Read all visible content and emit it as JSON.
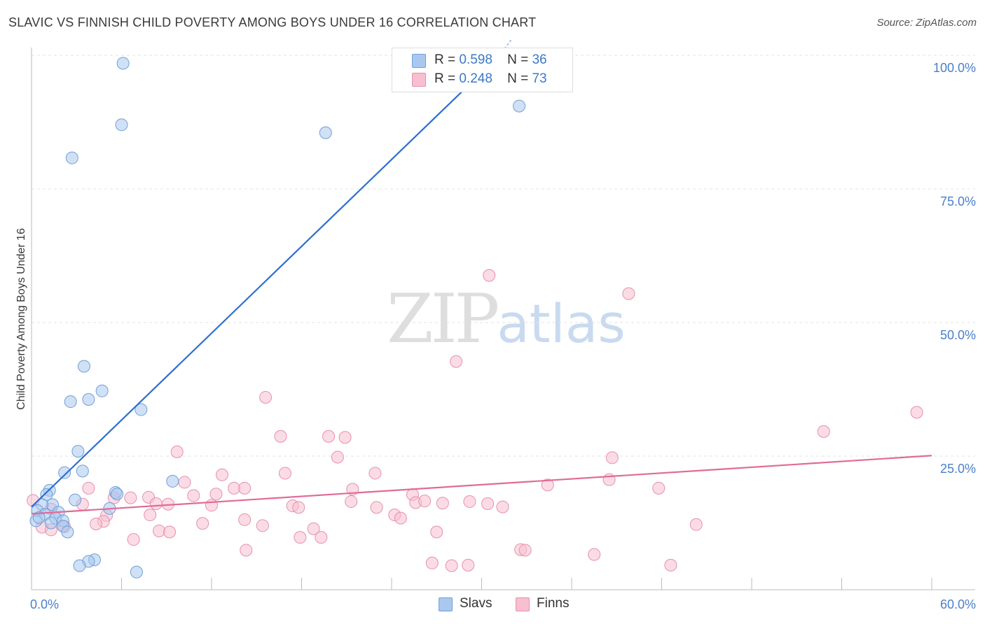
{
  "title": "SLAVIC VS FINNISH CHILD POVERTY AMONG BOYS UNDER 16 CORRELATION CHART",
  "source": "Source: ZipAtlas.com",
  "watermark": {
    "zip": "ZIP",
    "atlas": "atlas"
  },
  "legend": {
    "rows": [
      {
        "r_label": "R =",
        "r_value": "0.598",
        "n_label": "N =",
        "n_value": "36"
      },
      {
        "r_label": "R =",
        "r_value": "0.248",
        "n_label": "N =",
        "n_value": "73"
      }
    ]
  },
  "bottom_legend": [
    "Slavs",
    "Finns"
  ],
  "colors": {
    "slavs_fill": "#aac8ef",
    "slavs_stroke": "#6f9fd8",
    "slavs_line": "#2e6fcf",
    "finns_fill": "#f7bfd0",
    "finns_stroke": "#e690ad",
    "finns_line": "#e06b98",
    "tick": "#4a7fc8",
    "grid": "#e3e3e3"
  },
  "chart_data": {
    "type": "scatter",
    "xlabel": "",
    "ylabel": "Child Poverty Among Boys Under 16",
    "xlim": [
      0,
      60
    ],
    "ylim": [
      0,
      100
    ],
    "x_tick_labels": [
      {
        "value": 0,
        "label": "0.0%"
      },
      {
        "value": 60,
        "label": "60.0%"
      }
    ],
    "y_tick_labels": [
      {
        "value": 25,
        "label": "25.0%"
      },
      {
        "value": 50,
        "label": "50.0%"
      },
      {
        "value": 75,
        "label": "75.0%"
      },
      {
        "value": 100,
        "label": "100.0%"
      }
    ],
    "series": [
      {
        "name": "Slavs",
        "r": 0.598,
        "n": 36,
        "trend": {
          "x": [
            0,
            31.2
          ],
          "y": [
            15.5,
            100
          ]
        },
        "points": [
          [
            6.1,
            98.5
          ],
          [
            6.0,
            87.0
          ],
          [
            2.7,
            80.8
          ],
          [
            19.6,
            85.5
          ],
          [
            32.5,
            90.5
          ],
          [
            3.5,
            41.8
          ],
          [
            4.7,
            37.2
          ],
          [
            2.6,
            35.2
          ],
          [
            3.8,
            35.6
          ],
          [
            7.3,
            33.7
          ],
          [
            3.1,
            25.9
          ],
          [
            2.2,
            21.9
          ],
          [
            3.4,
            22.2
          ],
          [
            9.4,
            20.3
          ],
          [
            1.2,
            18.6
          ],
          [
            5.6,
            18.2
          ],
          [
            5.7,
            17.9
          ],
          [
            1.0,
            17.8
          ],
          [
            2.9,
            16.8
          ],
          [
            1.4,
            15.9
          ],
          [
            0.7,
            15.9
          ],
          [
            5.2,
            15.2
          ],
          [
            1.8,
            14.5
          ],
          [
            0.4,
            14.8
          ],
          [
            0.9,
            14.1
          ],
          [
            1.6,
            13.4
          ],
          [
            0.3,
            12.9
          ],
          [
            0.5,
            13.5
          ],
          [
            1.3,
            12.5
          ],
          [
            2.1,
            12.9
          ],
          [
            2.1,
            11.9
          ],
          [
            2.4,
            10.8
          ],
          [
            4.2,
            5.6
          ],
          [
            3.8,
            5.3
          ],
          [
            3.2,
            4.5
          ],
          [
            7.0,
            3.3
          ]
        ]
      },
      {
        "name": "Finns",
        "r": 0.248,
        "n": 73,
        "trend": {
          "x": [
            0,
            60
          ],
          "y": [
            14.2,
            25.1
          ]
        },
        "points": [
          [
            30.5,
            58.8
          ],
          [
            39.8,
            55.4
          ],
          [
            28.3,
            42.7
          ],
          [
            59.0,
            33.2
          ],
          [
            15.6,
            36.0
          ],
          [
            52.8,
            29.6
          ],
          [
            16.6,
            28.7
          ],
          [
            19.8,
            28.7
          ],
          [
            20.9,
            28.5
          ],
          [
            9.7,
            25.8
          ],
          [
            20.4,
            24.8
          ],
          [
            38.7,
            24.7
          ],
          [
            12.7,
            21.5
          ],
          [
            16.9,
            21.8
          ],
          [
            22.9,
            21.8
          ],
          [
            10.2,
            20.1
          ],
          [
            34.4,
            19.6
          ],
          [
            38.5,
            20.6
          ],
          [
            41.8,
            19.0
          ],
          [
            3.8,
            19.0
          ],
          [
            13.5,
            19.0
          ],
          [
            14.2,
            19.0
          ],
          [
            21.4,
            18.8
          ],
          [
            25.4,
            17.8
          ],
          [
            12.3,
            17.9
          ],
          [
            7.8,
            17.3
          ],
          [
            6.6,
            17.2
          ],
          [
            5.5,
            17.2
          ],
          [
            10.8,
            17.6
          ],
          [
            0.1,
            16.7
          ],
          [
            21.3,
            16.5
          ],
          [
            25.6,
            16.3
          ],
          [
            29.2,
            16.5
          ],
          [
            27.4,
            16.2
          ],
          [
            30.4,
            16.1
          ],
          [
            3.4,
            16.0
          ],
          [
            12.0,
            15.8
          ],
          [
            17.4,
            15.7
          ],
          [
            17.8,
            15.4
          ],
          [
            23.0,
            15.4
          ],
          [
            31.4,
            15.5
          ],
          [
            8.3,
            16.1
          ],
          [
            9.1,
            16.0
          ],
          [
            26.2,
            16.6
          ],
          [
            1.3,
            15.1
          ],
          [
            7.9,
            14.0
          ],
          [
            5.0,
            13.9
          ],
          [
            24.2,
            14.0
          ],
          [
            24.6,
            13.4
          ],
          [
            14.2,
            13.1
          ],
          [
            4.8,
            12.8
          ],
          [
            15.4,
            12.0
          ],
          [
            11.4,
            12.4
          ],
          [
            4.3,
            12.3
          ],
          [
            44.3,
            12.2
          ],
          [
            2.2,
            11.8
          ],
          [
            0.7,
            11.7
          ],
          [
            18.8,
            11.4
          ],
          [
            1.3,
            11.2
          ],
          [
            8.5,
            11.0
          ],
          [
            9.2,
            10.8
          ],
          [
            27.0,
            10.8
          ],
          [
            17.9,
            9.8
          ],
          [
            19.3,
            9.8
          ],
          [
            6.8,
            9.4
          ],
          [
            32.6,
            7.5
          ],
          [
            32.9,
            7.4
          ],
          [
            14.3,
            7.4
          ],
          [
            37.5,
            6.6
          ],
          [
            26.7,
            5.0
          ],
          [
            28.0,
            4.5
          ],
          [
            29.1,
            4.6
          ],
          [
            42.6,
            4.6
          ]
        ]
      }
    ]
  }
}
